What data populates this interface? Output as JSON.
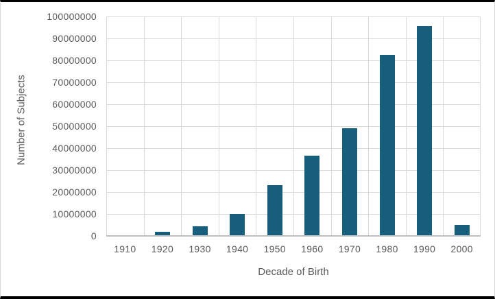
{
  "chart_data": {
    "type": "bar",
    "title": "",
    "xlabel": "Decade of Birth",
    "ylabel": "Number of Subjects",
    "categories": [
      "1910",
      "1920",
      "1930",
      "1940",
      "1950",
      "1960",
      "1970",
      "1980",
      "1990",
      "2000"
    ],
    "values": [
      0,
      2000000,
      4500000,
      10000000,
      23000000,
      36500000,
      49000000,
      82500000,
      95500000,
      5000000
    ],
    "ylim": [
      0,
      100000000
    ],
    "ytick_step": 10000000,
    "ytick_labels": [
      "0",
      "10000000",
      "20000000",
      "30000000",
      "40000000",
      "50000000",
      "60000000",
      "70000000",
      "80000000",
      "90000000",
      "100000000"
    ],
    "grid": "both",
    "legend": "none",
    "colors": {
      "bar": "#175E7D",
      "gridline": "#D9D9D9",
      "axis_line": "#BFBFBF",
      "tick_text": "#595959",
      "title_text": "#595959",
      "frame_top_bottom": "#000000",
      "frame_sides": "#D9D9D9",
      "background": "#FFFFFF"
    }
  }
}
